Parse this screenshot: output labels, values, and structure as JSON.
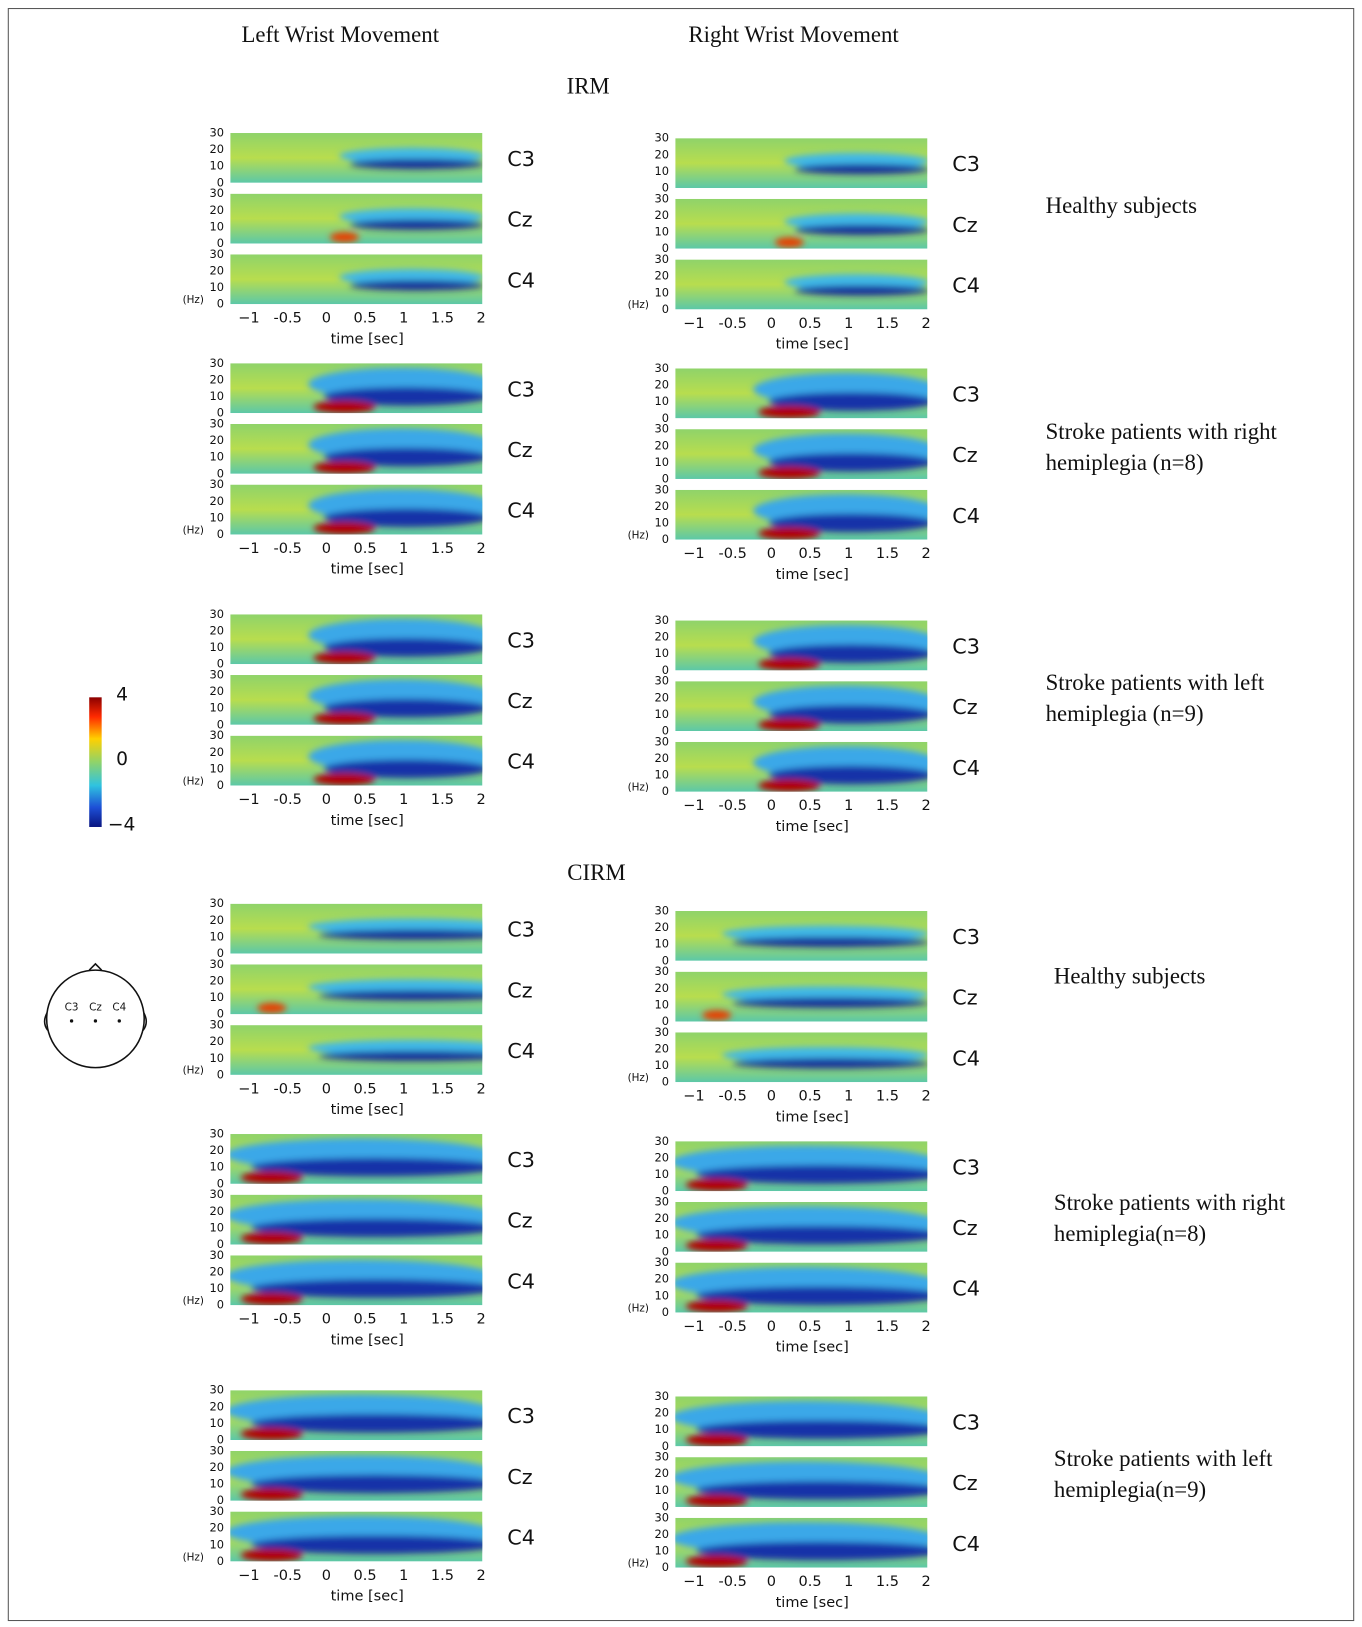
{
  "columns": [
    "Left Wrist Movement",
    "Right Wrist Movement"
  ],
  "sections": [
    {
      "title": "IRM",
      "groups": [
        {
          "label": [
            "Healthy subjects"
          ]
        },
        {
          "label": [
            "Stroke patients with right",
            "hemiplegia (n=8)"
          ]
        },
        {
          "label": [
            "Stroke patients with left",
            "hemiplegia (n=9)"
          ]
        }
      ]
    },
    {
      "title": "CIRM",
      "groups": [
        {
          "label": [
            "Healthy subjects"
          ]
        },
        {
          "label": [
            "Stroke patients with right",
            "hemiplegia(n=8)"
          ]
        },
        {
          "label": [
            "Stroke patients with left",
            "hemiplegia(n=9)"
          ]
        }
      ]
    }
  ],
  "channels": [
    "C3",
    "Cz",
    "C4"
  ],
  "freq_ticks": [
    "0",
    "10",
    "20",
    "30"
  ],
  "freq_unit": "(Hz)",
  "time_ticks": [
    "−1",
    "-0.5",
    "0",
    "0.5",
    "1",
    "1.5",
    "2"
  ],
  "time_label": "time  [sec]",
  "colorbar": {
    "max": "4",
    "mid": "0",
    "min": "−4"
  },
  "head": {
    "electrodes": [
      "C3",
      "Cz",
      "C4"
    ]
  }
}
